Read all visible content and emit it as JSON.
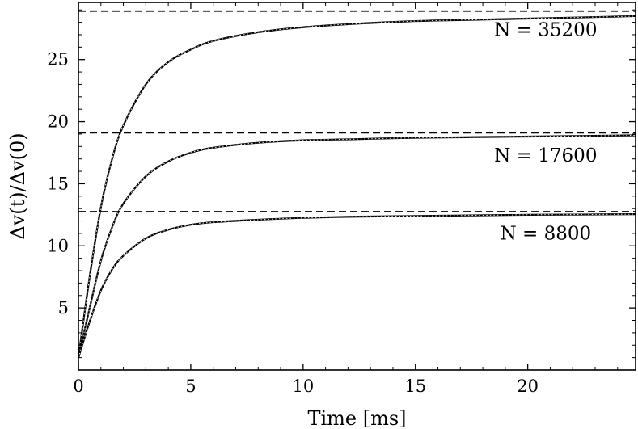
{
  "chart_data": {
    "type": "line",
    "title": "",
    "xlabel": "Time [ms]",
    "ylabel": "Δv(t)/Δv(0)",
    "xlim": [
      0,
      24.8
    ],
    "ylim": [
      0,
      29.6
    ],
    "xticks": [
      0,
      5,
      10,
      15,
      20
    ],
    "yticks": [
      5,
      10,
      15,
      20,
      25
    ],
    "grid": false,
    "legend": "none",
    "colors": {
      "curve": "#000000",
      "axis": "#000000",
      "background": "#ffffff"
    },
    "annotations": [
      {
        "text": "N = 35200",
        "x": 20.8,
        "y": 26.9
      },
      {
        "text": "N = 17600",
        "x": 20.8,
        "y": 16.8
      },
      {
        "text": "N = 8800",
        "x": 20.8,
        "y": 10.5
      }
    ],
    "series": [
      {
        "line_style": "solid",
        "x": [
          0,
          0.5,
          1,
          1.5,
          2,
          3,
          4,
          5,
          6,
          8,
          10,
          12.5,
          15,
          17.5,
          20,
          22.5,
          24.8
        ],
        "y": [
          1.0,
          7.5,
          13.1,
          17.0,
          19.7,
          23.0,
          24.8,
          25.8,
          26.5,
          27.2,
          27.6,
          27.9,
          28.1,
          28.2,
          28.3,
          28.4,
          28.5
        ]
      },
      {
        "line_style": "solid",
        "x": [
          0,
          0.5,
          1,
          1.5,
          2,
          3,
          4,
          5,
          6,
          8,
          10,
          12.5,
          15,
          17.5,
          20,
          22.5,
          24.8
        ],
        "y": [
          1.0,
          5.0,
          8.8,
          11.5,
          13.4,
          15.6,
          16.8,
          17.5,
          17.9,
          18.3,
          18.5,
          18.6,
          18.7,
          18.75,
          18.8,
          18.85,
          18.9
        ]
      },
      {
        "line_style": "solid",
        "x": [
          0,
          0.5,
          1,
          1.5,
          2,
          3,
          4,
          5,
          6,
          8,
          10,
          12.5,
          15,
          17.5,
          20,
          22.5,
          24.8
        ],
        "y": [
          1.0,
          3.9,
          6.4,
          8.1,
          9.2,
          10.6,
          11.3,
          11.7,
          11.9,
          12.1,
          12.25,
          12.35,
          12.4,
          12.45,
          12.5,
          12.52,
          12.55
        ]
      }
    ],
    "asymptotes": [
      {
        "line_style": "dashed",
        "y": 28.9
      },
      {
        "line_style": "dashed",
        "y": 19.1
      },
      {
        "line_style": "dashed",
        "y": 12.75
      }
    ]
  }
}
